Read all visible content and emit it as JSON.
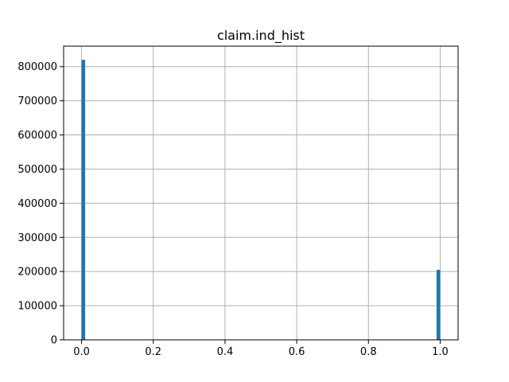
{
  "chart_data": {
    "type": "bar",
    "title": "claim.ind_hist",
    "xlabel": "",
    "ylabel": "",
    "bars": [
      {
        "x0": 0.0,
        "x1": 0.01,
        "value": 820000
      },
      {
        "x0": 0.99,
        "x1": 1.0,
        "value": 205000
      }
    ],
    "xlim": [
      -0.05,
      1.05
    ],
    "ylim": [
      0,
      860000
    ],
    "xticks": [
      0.0,
      0.2,
      0.4,
      0.6,
      0.8,
      1.0
    ],
    "xtick_labels": [
      "0.0",
      "0.2",
      "0.4",
      "0.6",
      "0.8",
      "1.0"
    ],
    "yticks": [
      0,
      100000,
      200000,
      300000,
      400000,
      500000,
      600000,
      700000,
      800000
    ],
    "ytick_labels": [
      "0",
      "100000",
      "200000",
      "300000",
      "400000",
      "500000",
      "600000",
      "700000",
      "800000"
    ],
    "grid": true,
    "bar_color": "#1f77b4"
  }
}
